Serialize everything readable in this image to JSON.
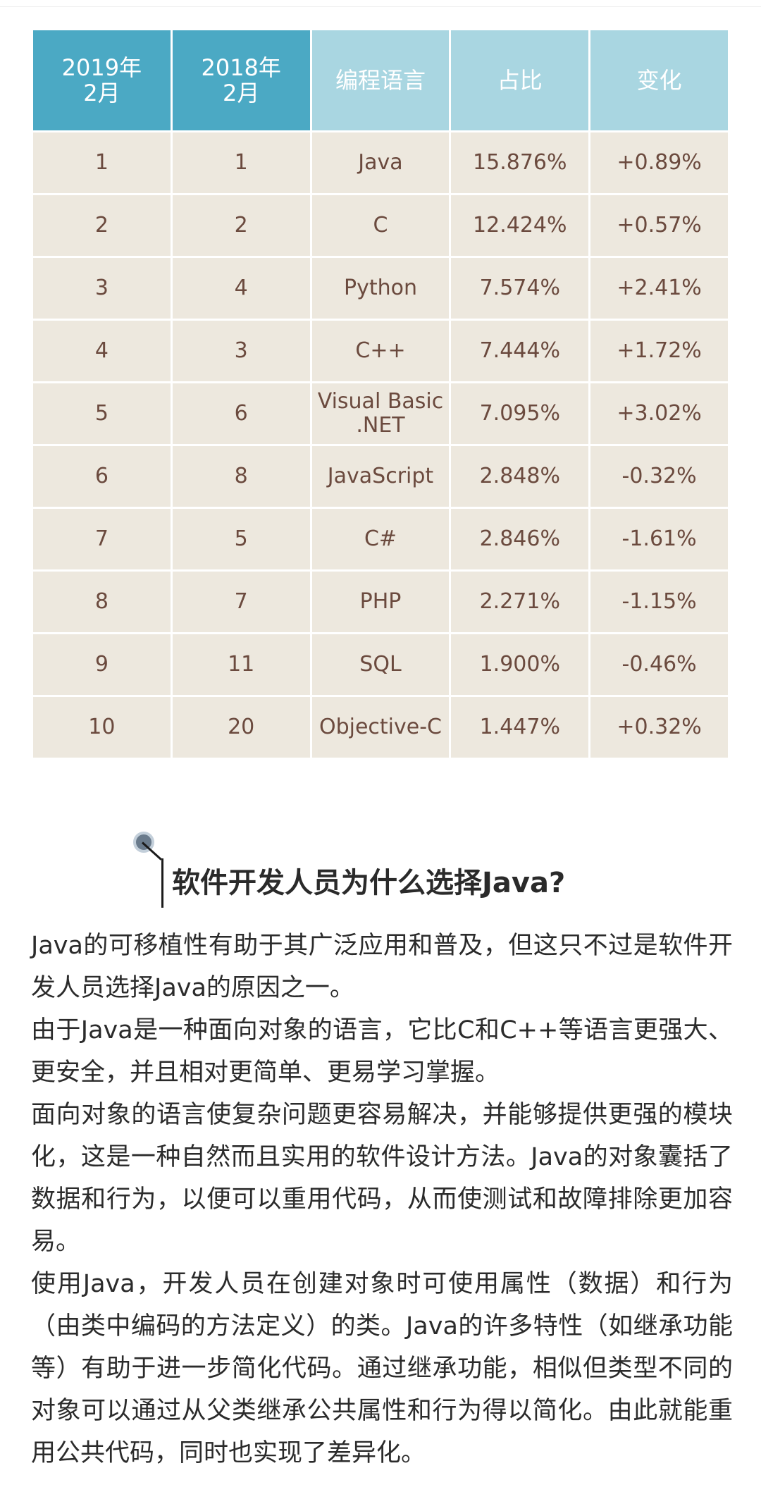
{
  "table": {
    "headers": [
      "2019年\n2月",
      "2018年\n2月",
      "编程语言",
      "占比",
      "变化"
    ],
    "rows": [
      [
        "1",
        "1",
        "Java",
        "15.876%",
        "+0.89%"
      ],
      [
        "2",
        "2",
        "C",
        "12.424%",
        "+0.57%"
      ],
      [
        "3",
        "4",
        "Python",
        "7.574%",
        "+2.41%"
      ],
      [
        "4",
        "3",
        "C++",
        "7.444%",
        "+1.72%"
      ],
      [
        "5",
        "6",
        "Visual Basic\n.NET",
        "7.095%",
        "+3.02%"
      ],
      [
        "6",
        "8",
        "JavaScript",
        "2.848%",
        "-0.32%"
      ],
      [
        "7",
        "5",
        "C#",
        "2.846%",
        "-1.61%"
      ],
      [
        "8",
        "7",
        "PHP",
        "2.271%",
        "-1.15%"
      ],
      [
        "9",
        "11",
        "SQL",
        "1.900%",
        "-0.46%"
      ],
      [
        "10",
        "20",
        "Objective-C",
        "1.447%",
        "+0.32%"
      ]
    ]
  },
  "section": {
    "title": "软件开发人员为什么选择Java?"
  },
  "paragraphs": [
    "Java的可移植性有助于其广泛应用和普及，但这只不过是软件开发人员选择Java的原因之一。",
    "由于Java是一种面向对象的语言，它比C和C++等语言更强大、更安全，并且相对更简单、更易学习掌握。",
    "面向对象的语言使复杂问题更容易解决，并能够提供更强的模块化，这是一种自然而且实用的软件设计方法。Java的对象囊括了数据和行为，以便可以重用代码，从而使测试和故障排除更加容易。",
    "使用Java，开发人员在创建对象时可使用属性（数据）和行为（由类中编码的方法定义）的类。Java的许多特性（如继承功能等）有助于进一步简化代码。通过继承功能，相似但类型不同的对象可以通过从父类继承公共属性和行为得以简化。由此就能重用公共代码，同时也实现了差异化。"
  ],
  "colors": {
    "header_dark": "#4ba9c4",
    "header_light": "#a9d6e1",
    "cell_bg": "#ede8de",
    "cell_text": "#6b4a3e"
  }
}
